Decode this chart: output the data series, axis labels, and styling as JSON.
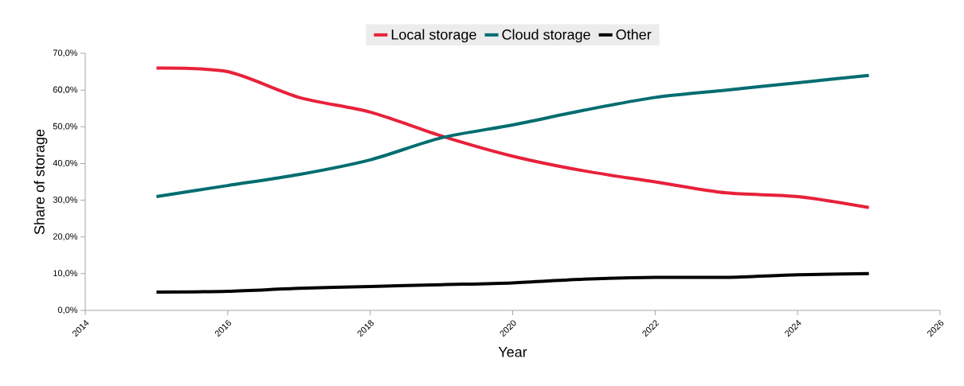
{
  "chart_data": {
    "type": "line",
    "xlabel": "Year",
    "ylabel": "Share of storage",
    "x": [
      2015,
      2016,
      2017,
      2018,
      2019,
      2020,
      2021,
      2022,
      2023,
      2024,
      2025
    ],
    "series": [
      {
        "name": "Local storage",
        "color": "#e8213a",
        "values": [
          66,
          65,
          58,
          54,
          47.5,
          42,
          38,
          35,
          32,
          31,
          28
        ]
      },
      {
        "name": "Cloud storage",
        "color": "#006d70",
        "values": [
          31,
          34,
          37,
          41,
          47,
          50.5,
          54.5,
          58,
          60,
          62,
          64
        ]
      },
      {
        "name": "Other",
        "color": "#000000",
        "values": [
          5,
          5.2,
          6,
          6.5,
          7,
          7.5,
          8.5,
          9,
          9,
          9.7,
          10
        ]
      }
    ],
    "xlim": [
      2014,
      2026
    ],
    "xticks": [
      2014,
      2016,
      2018,
      2020,
      2022,
      2024,
      2026
    ],
    "ylim": [
      0,
      70
    ],
    "yticks": [
      {
        "value": 0,
        "label": "0,0%"
      },
      {
        "value": 10,
        "label": "10,0%"
      },
      {
        "value": 20,
        "label": "20,0%"
      },
      {
        "value": 30,
        "label": "30,0%"
      },
      {
        "value": 40,
        "label": "40,0%"
      },
      {
        "value": 50,
        "label": "50,0%"
      },
      {
        "value": 60,
        "label": "60,0%"
      },
      {
        "value": 70,
        "label": "70,0%"
      }
    ],
    "legend": "top",
    "grid": false,
    "marker": "none",
    "line_style": "solid"
  }
}
